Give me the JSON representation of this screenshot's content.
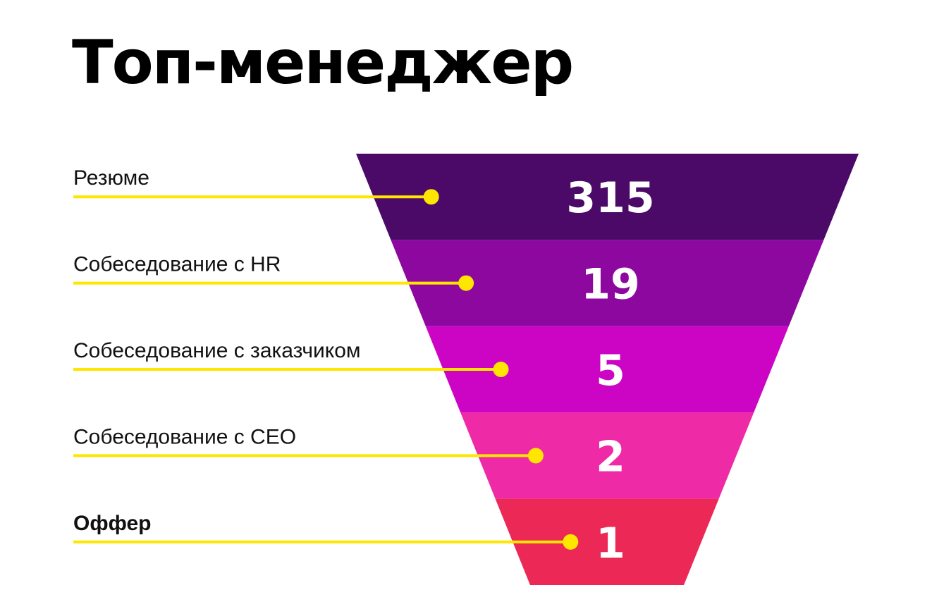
{
  "title": "Топ-менеджер",
  "chart_data": {
    "type": "funnel",
    "accent_color": "#FFE600",
    "stages": [
      {
        "label": "Резюме",
        "value": 315,
        "color": "#4B0A68",
        "bold": false
      },
      {
        "label": "Собеседование с HR",
        "value": 19,
        "color": "#8C089E",
        "bold": false
      },
      {
        "label": "Собеседование с заказчиком",
        "value": 5,
        "color": "#CC05C4",
        "bold": false
      },
      {
        "label": "Собеседование с CEO",
        "value": 2,
        "color": "#EE2AA6",
        "bold": false
      },
      {
        "label": "Оффер",
        "value": 1,
        "color": "#EC2956",
        "bold": true
      }
    ]
  }
}
